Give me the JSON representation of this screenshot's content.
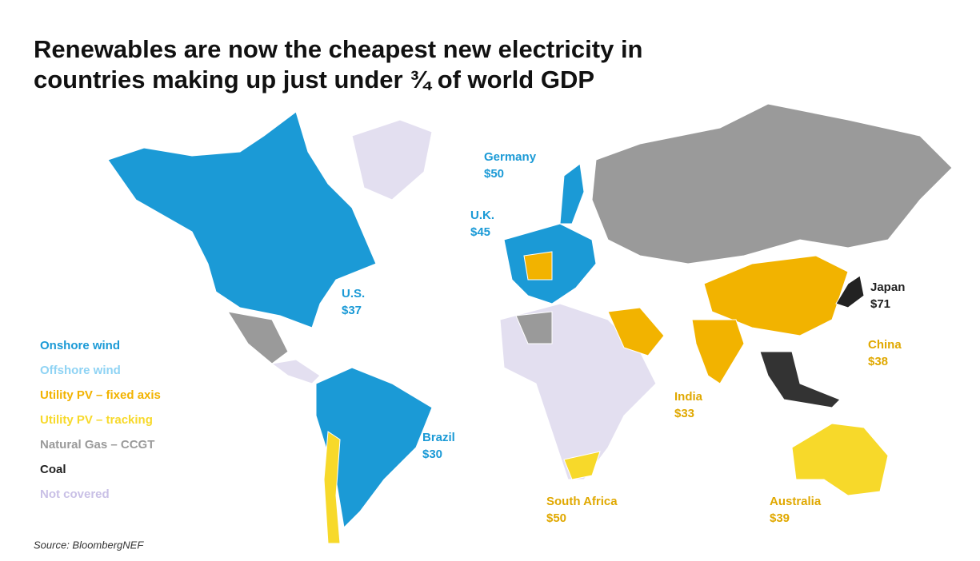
{
  "header": {
    "title_lines": [
      "Renewables are now the cheapest new electricity in",
      "countries making up just under ¾ of world GDP"
    ]
  },
  "legend": [
    {
      "label": "Onshore wind",
      "color": "#1b9ad6"
    },
    {
      "label": "Offshore wind",
      "color": "#8fd3f4"
    },
    {
      "label": "Utility PV – fixed axis",
      "color": "#f2b300"
    },
    {
      "label": "Utility PV – tracking",
      "color": "#f7d92a"
    },
    {
      "label": "Natural Gas – CCGT",
      "color": "#9a9a9a"
    },
    {
      "label": "Coal",
      "color": "#222222"
    },
    {
      "label": "Not covered",
      "color": "#c9c0e6"
    }
  ],
  "countries": [
    {
      "name": "Germany",
      "price": "$50",
      "color": "#1b9ad6"
    },
    {
      "name": "U.K.",
      "price": "$45",
      "color": "#1b9ad6"
    },
    {
      "name": "U.S.",
      "price": "$37",
      "color": "#1b9ad6"
    },
    {
      "name": "Japan",
      "price": "$71",
      "color": "#222222"
    },
    {
      "name": "China",
      "price": "$38",
      "color": "#e0a800"
    },
    {
      "name": "India",
      "price": "$33",
      "color": "#e0a800"
    },
    {
      "name": "Brazil",
      "price": "$30",
      "color": "#1b9ad6"
    },
    {
      "name": "South Africa",
      "price": "$50",
      "color": "#e0a800"
    },
    {
      "name": "Australia",
      "price": "$39",
      "color": "#e0a800"
    }
  ],
  "source": "Source: BloombergNEF"
}
